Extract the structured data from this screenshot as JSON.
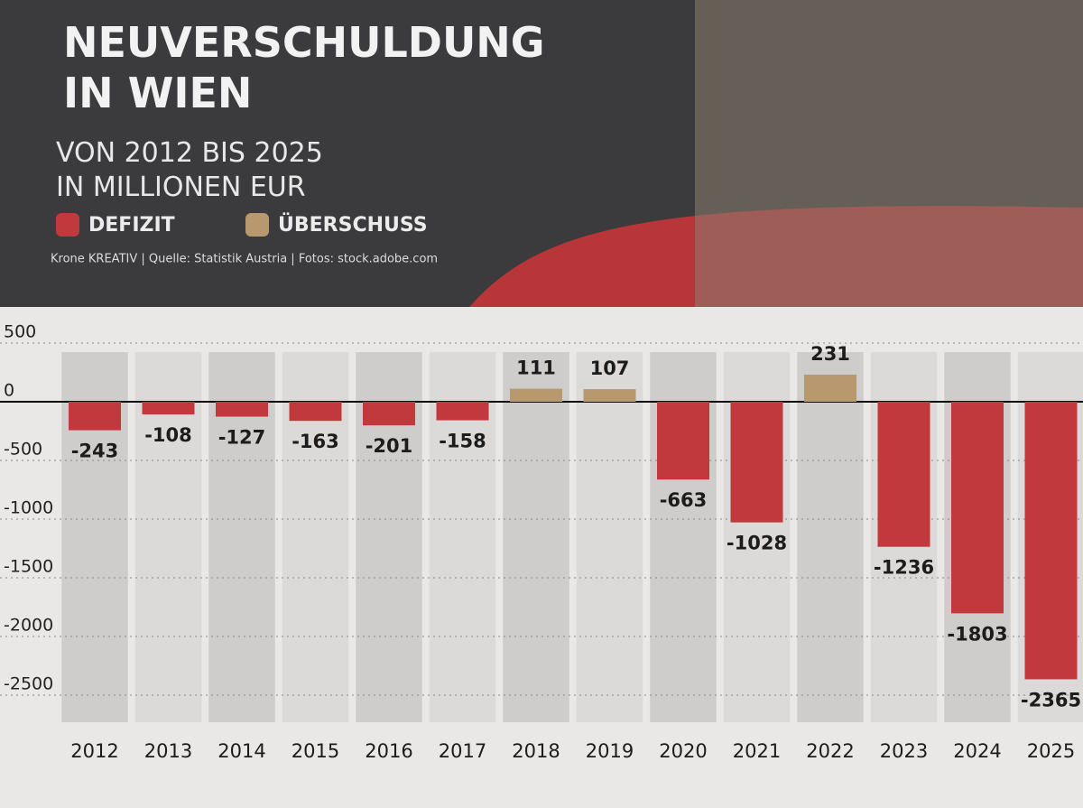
{
  "chart_data": {
    "type": "bar",
    "title": "NEUVERSCHULDUNG IN WIEN",
    "subtitle": "VON 2012 BIS 2025 IN MILLIONEN EUR",
    "source": "Krone KREATIV | Quelle: Statistik Austria | Fotos: stock.adobe.com",
    "categories": [
      "2012",
      "2013",
      "2014",
      "2015",
      "2016",
      "2017",
      "2018",
      "2019",
      "2020",
      "2021",
      "2022",
      "2023",
      "2024",
      "2025"
    ],
    "series": [
      {
        "name": "DEFIZIT",
        "color": "#c1393c",
        "values": [
          -243,
          -108,
          -127,
          -163,
          -201,
          -158,
          null,
          null,
          -663,
          -1028,
          null,
          -1236,
          -1803,
          -2365
        ]
      },
      {
        "name": "ÜBERSCHUSS",
        "color": "#b8996f",
        "values": [
          null,
          null,
          null,
          null,
          null,
          null,
          111,
          107,
          null,
          null,
          231,
          null,
          null,
          null
        ]
      }
    ],
    "ylim": [
      -2500,
      500
    ],
    "yticks": [
      500,
      0,
      -500,
      -1000,
      -1500,
      -2000,
      -2500
    ],
    "grid": true
  }
}
